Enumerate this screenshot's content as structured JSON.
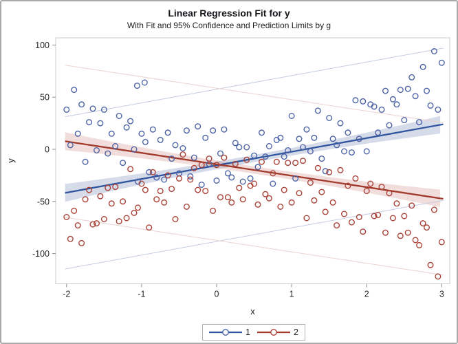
{
  "accent_colors": {
    "group1_blue": "#30559e",
    "group2_red": "#a23a2b",
    "frame_gray": "#cbcbcb",
    "border_gray": "#a9a9a9"
  },
  "chart_data": {
    "type": "scatter",
    "title": "Linear Regression Fit for y",
    "subtitle": "With Fit and 95% Confidence and Prediction Limits by g",
    "xlabel": "x",
    "ylabel": "y",
    "xlim": [
      -2.145,
      3.107
    ],
    "ylim": [
      -129,
      106.9
    ],
    "x_ticks": [
      -2,
      -1,
      0,
      1,
      2,
      3
    ],
    "y_ticks": [
      100,
      50,
      0,
      -50,
      -100
    ],
    "grid": false,
    "legend_position": "bottom-center",
    "legend": [
      {
        "label": "1"
      },
      {
        "label": "2"
      }
    ],
    "series": [
      {
        "name": "1",
        "marker": "open-circle",
        "marker_color": "#4d63a6",
        "line_color": "#30559e",
        "band_color": "rgba(90,110,170,0.25)",
        "pi_color": "#c3cbe2",
        "fit": {
          "slope": 13.06,
          "intercept": -15.4,
          "x_range": [
            -2.02,
            3.02
          ]
        },
        "ci_halfwidth": {
          "base": 3.5,
          "quad": 0.8,
          "center": 0.5
        },
        "pi_offset": 73,
        "points_xy": [
          [
            -2,
            38
          ],
          [
            -1.95,
            4
          ],
          [
            -1.9,
            57
          ],
          [
            -1.85,
            15
          ],
          [
            -1.8,
            43
          ],
          [
            -1.75,
            -12
          ],
          [
            -1.7,
            26
          ],
          [
            -1.65,
            39
          ],
          [
            -1.6,
            -1
          ],
          [
            -1.55,
            25
          ],
          [
            -1.5,
            38
          ],
          [
            -1.45,
            -4
          ],
          [
            -1.4,
            15
          ],
          [
            -1.35,
            3
          ],
          [
            -1.3,
            32
          ],
          [
            -1.25,
            -13
          ],
          [
            -1.2,
            21
          ],
          [
            -1.15,
            27
          ],
          [
            -1.1,
            0
          ],
          [
            -1.05,
            -31
          ],
          [
            -1,
            15
          ],
          [
            -0.95,
            7
          ],
          [
            -0.9,
            -22
          ],
          [
            -0.85,
            19
          ],
          [
            -0.8,
            -27
          ],
          [
            -0.75,
            9
          ],
          [
            -0.7,
            -29
          ],
          [
            -0.65,
            16
          ],
          [
            -0.6,
            -9
          ],
          [
            -0.55,
            4
          ],
          [
            -0.5,
            -23
          ],
          [
            -0.45,
            1
          ],
          [
            -0.4,
            18
          ],
          [
            -0.35,
            -26
          ],
          [
            -0.3,
            -8
          ],
          [
            -0.25,
            22
          ],
          [
            -0.2,
            -34
          ],
          [
            -0.15,
            11
          ],
          [
            -0.1,
            -14
          ],
          [
            -0.05,
            18
          ],
          [
            0,
            -30
          ],
          [
            0.05,
            -4
          ],
          [
            0.1,
            19
          ],
          [
            0.15,
            -23
          ],
          [
            0.2,
            -27
          ],
          [
            0.25,
            6
          ],
          [
            0.3,
            2
          ],
          [
            0.35,
            -31
          ],
          [
            0.4,
            2
          ],
          [
            0.45,
            -28
          ],
          [
            0.5,
            -6
          ],
          [
            0.55,
            -17
          ],
          [
            0.6,
            16
          ],
          [
            0.65,
            -7
          ],
          [
            0.7,
            3
          ],
          [
            0.75,
            -33
          ],
          [
            0.8,
            9
          ],
          [
            0.85,
            11
          ],
          [
            0.9,
            -7
          ],
          [
            0.95,
            -1
          ],
          [
            1,
            32
          ],
          [
            1.05,
            -28
          ],
          [
            1.1,
            10
          ],
          [
            1.15,
            2
          ],
          [
            1.2,
            19
          ],
          [
            1.25,
            -2
          ],
          [
            1.3,
            11
          ],
          [
            1.35,
            37
          ],
          [
            1.4,
            -9
          ],
          [
            1.45,
            -21
          ],
          [
            1.5,
            30
          ],
          [
            1.55,
            10
          ],
          [
            1.6,
            4
          ],
          [
            1.65,
            25
          ],
          [
            1.7,
            -2
          ],
          [
            1.75,
            16
          ],
          [
            1.8,
            -3
          ],
          [
            1.85,
            47
          ],
          [
            1.9,
            10
          ],
          [
            1.95,
            46
          ],
          [
            2,
            -2
          ],
          [
            2.05,
            43
          ],
          [
            2.1,
            41
          ],
          [
            2.15,
            16
          ],
          [
            2.2,
            38
          ],
          [
            2.25,
            56
          ],
          [
            2.3,
            23
          ],
          [
            2.35,
            48
          ],
          [
            2.4,
            43
          ],
          [
            2.45,
            57
          ],
          [
            2.5,
            28
          ],
          [
            2.55,
            58
          ],
          [
            2.6,
            69
          ],
          [
            2.65,
            51
          ],
          [
            2.7,
            26
          ],
          [
            2.75,
            79
          ],
          [
            2.8,
            56
          ],
          [
            2.85,
            42
          ],
          [
            2.9,
            94
          ],
          [
            2.95,
            38
          ],
          [
            3,
            83
          ],
          [
            -1.06,
            61
          ],
          [
            -0.96,
            64
          ]
        ]
      },
      {
        "name": "2",
        "marker": "open-circle",
        "marker_color": "#aa4238",
        "line_color": "#a23a2b",
        "band_color": "rgba(190,105,95,0.22)",
        "pi_color": "#ead2cf",
        "fit": {
          "slope": -10.96,
          "intercept": -14.4,
          "x_range": [
            -2.02,
            3.02
          ]
        },
        "ci_halfwidth": {
          "base": 3.5,
          "quad": 0.8,
          "center": 0.5
        },
        "pi_offset": 73,
        "points_xy": [
          [
            -2,
            -65
          ],
          [
            -1.95,
            -86
          ],
          [
            -1.9,
            -59
          ],
          [
            -1.85,
            -73
          ],
          [
            -1.8,
            -90
          ],
          [
            -1.75,
            -48
          ],
          [
            -1.7,
            -39
          ],
          [
            -1.65,
            -72
          ],
          [
            -1.6,
            -71
          ],
          [
            -1.55,
            -45
          ],
          [
            -1.5,
            -67
          ],
          [
            -1.45,
            -37
          ],
          [
            -1.4,
            -52
          ],
          [
            -1.35,
            -36
          ],
          [
            -1.3,
            -69
          ],
          [
            -1.25,
            -50
          ],
          [
            -1.2,
            -66
          ],
          [
            -1.15,
            -19
          ],
          [
            -1.1,
            -61
          ],
          [
            -1.05,
            -56
          ],
          [
            -1,
            -33
          ],
          [
            -0.95,
            -39
          ],
          [
            -0.9,
            -75
          ],
          [
            -0.85,
            -22
          ],
          [
            -0.8,
            -48
          ],
          [
            -0.75,
            -40
          ],
          [
            -0.7,
            -51
          ],
          [
            -0.65,
            -25
          ],
          [
            -0.6,
            -38
          ],
          [
            -0.55,
            -67
          ],
          [
            -0.5,
            -28
          ],
          [
            -0.45,
            -5
          ],
          [
            -0.4,
            -55
          ],
          [
            -0.35,
            -29
          ],
          [
            -0.3,
            -18
          ],
          [
            -0.25,
            -39
          ],
          [
            -0.2,
            -15
          ],
          [
            -0.15,
            -40
          ],
          [
            -0.1,
            -9
          ],
          [
            -0.05,
            -59
          ],
          [
            0,
            -15
          ],
          [
            0.05,
            -46
          ],
          [
            0.1,
            -8
          ],
          [
            0.15,
            -46
          ],
          [
            0.2,
            -51
          ],
          [
            0.25,
            -14
          ],
          [
            0.3,
            -37
          ],
          [
            0.35,
            -48
          ],
          [
            0.4,
            -10
          ],
          [
            0.45,
            -35
          ],
          [
            0.5,
            -33
          ],
          [
            0.55,
            -53
          ],
          [
            0.6,
            -12
          ],
          [
            0.65,
            -43
          ],
          [
            0.7,
            -47
          ],
          [
            0.75,
            -23
          ],
          [
            0.8,
            -12
          ],
          [
            0.85,
            -55
          ],
          [
            0.9,
            -39
          ],
          [
            0.95,
            -13
          ],
          [
            1,
            -51
          ],
          [
            1.05,
            -13
          ],
          [
            1.1,
            -42
          ],
          [
            1.15,
            -11
          ],
          [
            1.2,
            -66
          ],
          [
            1.25,
            -32
          ],
          [
            1.3,
            -49
          ],
          [
            1.35,
            -18
          ],
          [
            1.4,
            -41
          ],
          [
            1.45,
            -60
          ],
          [
            1.5,
            -22
          ],
          [
            1.55,
            -51
          ],
          [
            1.6,
            -73
          ],
          [
            1.65,
            -20
          ],
          [
            1.7,
            -62
          ],
          [
            1.75,
            -35
          ],
          [
            1.8,
            -70
          ],
          [
            1.85,
            -28
          ],
          [
            1.9,
            -65
          ],
          [
            1.95,
            -79
          ],
          [
            2,
            -40
          ],
          [
            2.05,
            -33
          ],
          [
            2.1,
            -64
          ],
          [
            2.15,
            -63
          ],
          [
            2.2,
            -36
          ],
          [
            2.25,
            -80
          ],
          [
            2.3,
            -42
          ],
          [
            2.35,
            -66
          ],
          [
            2.4,
            -52
          ],
          [
            2.45,
            -83
          ],
          [
            2.5,
            -64
          ],
          [
            2.55,
            -80
          ],
          [
            2.6,
            -54
          ],
          [
            2.65,
            -87
          ],
          [
            2.7,
            -92
          ],
          [
            2.75,
            -71
          ],
          [
            2.8,
            -75
          ],
          [
            2.85,
            -111
          ],
          [
            2.9,
            -58
          ],
          [
            2.95,
            -122
          ],
          [
            3,
            -89
          ]
        ]
      }
    ]
  }
}
